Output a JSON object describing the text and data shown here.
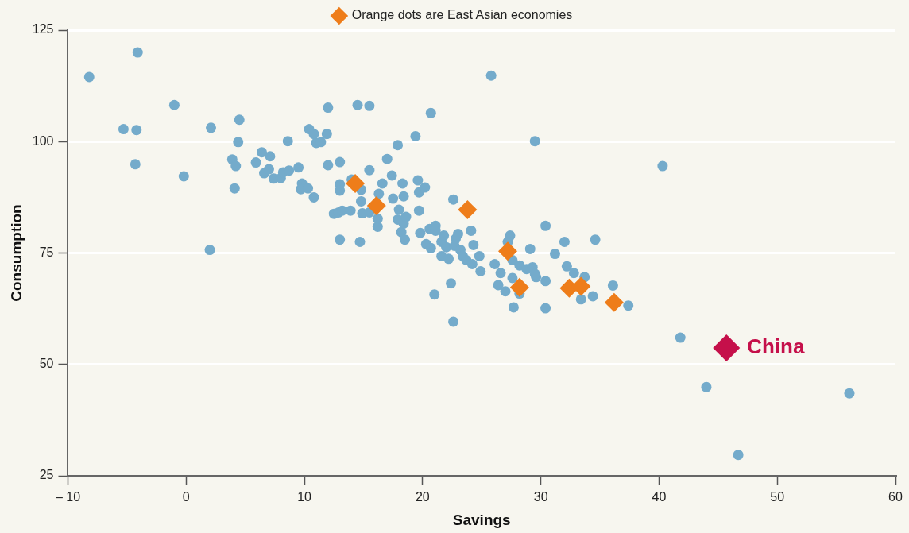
{
  "chart_data": {
    "type": "scatter",
    "xlabel": "Savings",
    "ylabel": "Consumption",
    "xlim": [
      -10,
      60
    ],
    "xticks": [
      {
        "value": -10,
        "label": "– 10"
      },
      0,
      10,
      20,
      30,
      40,
      50,
      60
    ],
    "ylim": [
      25,
      125
    ],
    "yticks": [
      25,
      50,
      75,
      100,
      125
    ],
    "grid": "y",
    "legend": "top",
    "annotations": [
      {
        "text": "China",
        "x": 45.7,
        "y": 53.7
      }
    ],
    "series": [
      {
        "color": "#74abcb",
        "marker": "circle",
        "x": [
          -8.2,
          -5.3,
          -4.1,
          -4.2,
          -4.3,
          -1.0,
          -0.2,
          2.1,
          2.0,
          3.9,
          4.2,
          4.1,
          4.5,
          4.4,
          5.9,
          6.4,
          6.6,
          7.1,
          7.0,
          7.4,
          8.0,
          8.2,
          8.6,
          8.7,
          9.5,
          9.8,
          9.7,
          10.3,
          10.4,
          10.8,
          11.0,
          11.4,
          10.8,
          11.9,
          12.0,
          12.0,
          12.5,
          12.9,
          13.0,
          13.0,
          13.0,
          13.0,
          13.2,
          13.9,
          14.0,
          14.5,
          14.7,
          14.8,
          14.8,
          14.9,
          15.5,
          15.5,
          15.5,
          15.9,
          16.2,
          16.2,
          16.3,
          16.6,
          17.0,
          17.4,
          17.5,
          17.9,
          18.0,
          17.9,
          18.2,
          18.3,
          18.4,
          18.5,
          18.4,
          18.6,
          19.4,
          19.6,
          19.7,
          19.7,
          19.8,
          20.2,
          20.3,
          20.7,
          20.6,
          20.7,
          21.1,
          21.1,
          21.0,
          21.6,
          21.6,
          21.8,
          22.0,
          22.2,
          22.4,
          22.6,
          22.6,
          22.7,
          22.8,
          23.0,
          23.2,
          23.4,
          23.7,
          24.1,
          24.3,
          24.2,
          24.8,
          24.9,
          25.8,
          26.1,
          26.4,
          26.6,
          27.0,
          27.4,
          27.2,
          27.6,
          27.6,
          27.7,
          28.2,
          28.2,
          28.8,
          29.1,
          29.5,
          29.3,
          29.6,
          29.5,
          30.4,
          30.4,
          30.4,
          31.2,
          32.0,
          32.2,
          32.8,
          33.4,
          33.7,
          34.4,
          34.6,
          36.1,
          37.4,
          40.3,
          41.8,
          44.0,
          46.7,
          56.1
        ],
        "values": [
          114.5,
          102.8,
          120,
          102.6,
          94.9,
          108.2,
          92.2,
          103.1,
          75.7,
          96.0,
          94.5,
          89.5,
          104.9,
          99.9,
          95.3,
          97.6,
          92.9,
          96.7,
          93.8,
          91.7,
          91.8,
          93.1,
          100.1,
          93.5,
          94.2,
          90.6,
          89.3,
          89.5,
          102.8,
          101.7,
          99.7,
          99.9,
          87.5,
          101.7,
          107.6,
          94.7,
          83.8,
          84.1,
          95.4,
          90.4,
          89.0,
          78.0,
          84.5,
          84.5,
          91.5,
          108.2,
          77.5,
          86.6,
          89.2,
          83.9,
          108.0,
          93.6,
          84.1,
          null,
          80.9,
          82.7,
          88.3,
          90.6,
          96.1,
          92.4,
          87.2,
          99.2,
          84.7,
          82.5,
          79.7,
          90.6,
          81.6,
          78.0,
          87.7,
          83.1,
          101.2,
          91.3,
          88.6,
          84.5,
          79.5,
          89.7,
          77.0,
          106.4,
          80.4,
          76.1,
          81.1,
          80.0,
          65.7,
          77.5,
          74.3,
          78.9,
          76.3,
          73.7,
          68.2,
          87.0,
          59.6,
          76.6,
          78.2,
          79.3,
          75.7,
          74.3,
          73.4,
          80.0,
          76.8,
          72.5,
          74.3,
          70.9,
          114.8,
          72.5,
          67.8,
          70.5,
          66.4,
          78.9,
          77.5,
          73.4,
          69.4,
          62.8,
          72.2,
          65.9,
          71.4,
          75.9,
          100.1,
          71.8,
          69.6,
          70.3,
          81.1,
          68.7,
          62.6,
          74.8,
          77.5,
          72.0,
          70.5,
          64.6,
          69.6,
          65.3,
          78.0,
          67.7,
          63.2,
          94.5,
          56.0,
          44.9,
          29.7,
          43.5
        ]
      },
      {
        "name": "Orange dots are East Asian economies",
        "color": "#ee7d1a",
        "marker": "diamond",
        "x": [
          14.3,
          16.1,
          23.8,
          27.2,
          28.2,
          32.4,
          33.4,
          36.2
        ],
        "values": [
          90.6,
          85.6,
          84.7,
          75.4,
          67.3,
          67.1,
          67.5,
          63.9
        ]
      },
      {
        "color": "#c5104a",
        "marker": "diamond",
        "x": [
          45.7
        ],
        "values": [
          53.7
        ]
      }
    ]
  }
}
